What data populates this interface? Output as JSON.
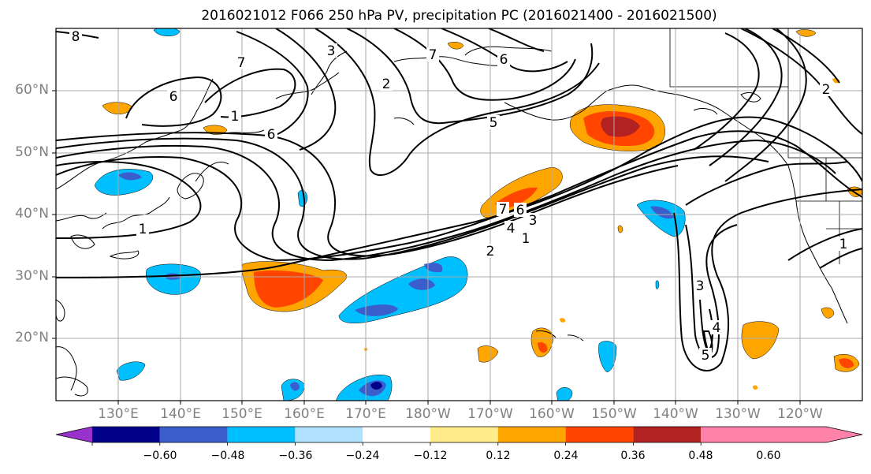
{
  "title": "2016021012 F066 250 hPa PV, precipitation PC (2016021400 - 2016021500)",
  "latitude_labels": [
    "60°N",
    "50°N",
    "40°N",
    "30°N",
    "20°N"
  ],
  "longitude_labels": [
    "130°E",
    "140°E",
    "150°E",
    "160°E",
    "170°E",
    "180°W",
    "170°W",
    "160°W",
    "150°W",
    "140°W",
    "130°W",
    "120°W"
  ],
  "contour_labels": [
    "8",
    "7",
    "6",
    "1",
    "6",
    "3",
    "2",
    "7",
    "6",
    "5",
    "1",
    "7",
    "6",
    "4",
    "3",
    "2",
    "1",
    "3",
    "4",
    "5",
    "2",
    "1"
  ],
  "colorbar": {
    "ticks": [
      "−0.60",
      "−0.48",
      "−0.36",
      "−0.24",
      "−0.12",
      "0.12",
      "0.24",
      "0.36",
      "0.48",
      "0.60"
    ],
    "colors": [
      "#9932cc",
      "#00008b",
      "#3a5fcd",
      "#00bfff",
      "#b0e2ff",
      "#ffffff",
      "#ffec8b",
      "#ffa500",
      "#ff4500",
      "#b22222",
      "#ff82ab"
    ]
  },
  "palette": {
    "blue_light": "#00bfff",
    "blue_mid": "#3a5fcd",
    "blue_dark": "#00008b",
    "yellow": "#ffec8b",
    "orange": "#ffa500",
    "red_orange": "#ff4500",
    "dark_red": "#b22222"
  }
}
